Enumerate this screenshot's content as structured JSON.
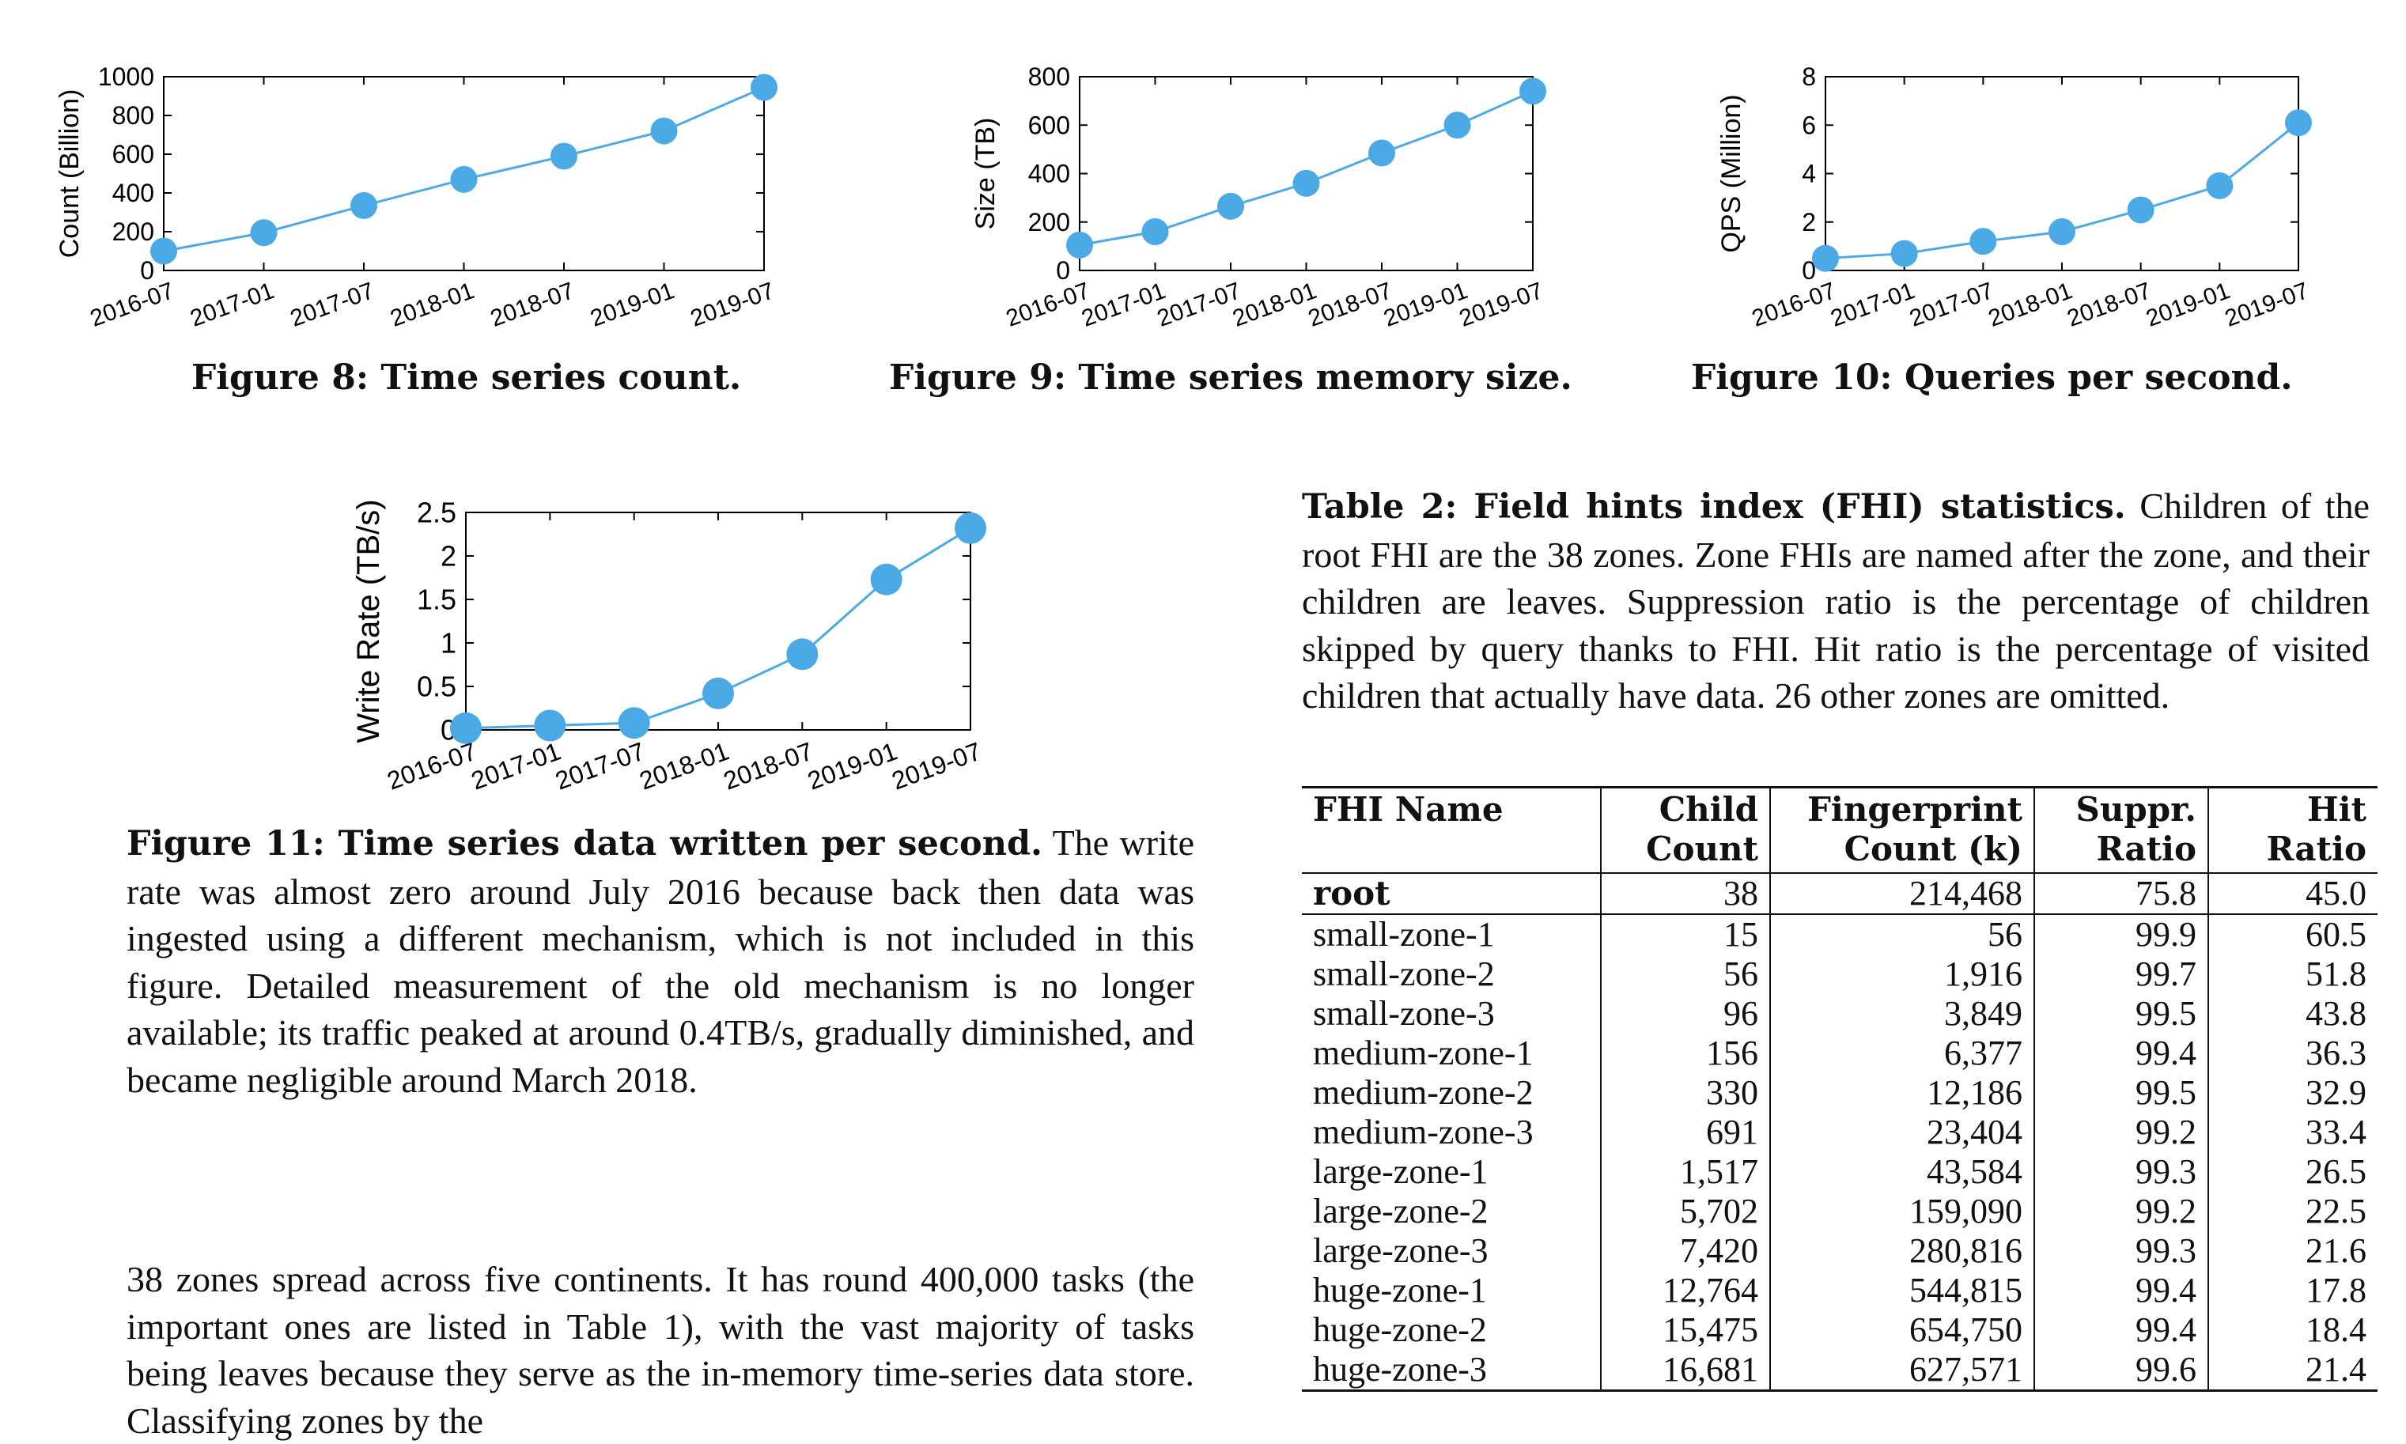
{
  "figures": [
    {
      "chart_data": {
        "type": "line",
        "ylabel": "Count (Billion)",
        "xlabel": "",
        "categories": [
          "2016-07",
          "2017-01",
          "2017-07",
          "2018-01",
          "2018-07",
          "2019-01",
          "2019-07"
        ],
        "values": [
          100,
          195,
          335,
          470,
          590,
          720,
          945
        ],
        "ylim": [
          0,
          1000
        ],
        "yticks": [
          "0",
          "200",
          "400",
          "600",
          "800",
          "1000"
        ],
        "color": "#4ba9e6"
      },
      "caption": "Figure 8:  Time series count."
    },
    {
      "chart_data": {
        "type": "line",
        "ylabel": "Size (TB)",
        "xlabel": "",
        "categories": [
          "2016-07",
          "2017-01",
          "2017-07",
          "2018-01",
          "2018-07",
          "2019-01",
          "2019-07"
        ],
        "values": [
          105,
          160,
          265,
          360,
          485,
          600,
          740
        ],
        "ylim": [
          0,
          800
        ],
        "yticks": [
          "0",
          "200",
          "400",
          "600",
          "800"
        ],
        "color": "#4ba9e6"
      },
      "caption": "Figure 9:  Time series memory size."
    },
    {
      "chart_data": {
        "type": "line",
        "ylabel": "QPS (Million)",
        "xlabel": "",
        "categories": [
          "2016-07",
          "2017-01",
          "2017-07",
          "2018-01",
          "2018-07",
          "2019-01",
          "2019-07"
        ],
        "values": [
          0.5,
          0.7,
          1.2,
          1.6,
          2.5,
          3.5,
          6.1
        ],
        "ylim": [
          0,
          8
        ],
        "yticks": [
          "0",
          "2",
          "4",
          "6",
          "8"
        ],
        "color": "#4ba9e6"
      },
      "caption": "Figure 10:  Queries per second."
    },
    {
      "chart_data": {
        "type": "line",
        "ylabel": "Write Rate (TB/s)",
        "xlabel": "",
        "categories": [
          "2016-07",
          "2017-01",
          "2017-07",
          "2018-01",
          "2018-07",
          "2019-01",
          "2019-07"
        ],
        "values": [
          0.02,
          0.05,
          0.08,
          0.42,
          0.87,
          1.73,
          2.32
        ],
        "ylim": [
          0,
          2.5
        ],
        "yticks": [
          "0",
          "0.5",
          "1",
          "1.5",
          "2",
          "2.5"
        ],
        "color": "#4ba9e6"
      },
      "caption_lead": "Figure 11:  Time series data written per second.",
      "caption_text": " The write rate was almost zero around July 2016 because back then data was ingested using a different mechanism, which is not included in this figure. Detailed measurement of the old mechanism is no longer available; its traffic peaked at around 0.4TB/s, gradually diminished, and became negligible around March 2018."
    }
  ],
  "table2": {
    "caption_lead": "Table 2:  Field hints index (FHI) statistics.",
    "caption_text": " Children of the root FHI are the 38 zones. Zone FHIs are named after the zone, and their children are leaves. Suppression ratio is the percentage of children skipped by query thanks to FHI. Hit ratio is the percentage of visited children that actually have data. 26 other zones are omitted.",
    "headers": [
      [
        "FHI Name",
        ""
      ],
      [
        "Child",
        "Count"
      ],
      [
        "Fingerprint",
        "Count (k)"
      ],
      [
        "Suppr.",
        "Ratio"
      ],
      [
        "Hit",
        "Ratio"
      ]
    ],
    "root": [
      "root",
      "38",
      "214,468",
      "75.8",
      "45.0"
    ],
    "rows": [
      [
        "small-zone-1",
        "15",
        "56",
        "99.9",
        "60.5"
      ],
      [
        "small-zone-2",
        "56",
        "1,916",
        "99.7",
        "51.8"
      ],
      [
        "small-zone-3",
        "96",
        "3,849",
        "99.5",
        "43.8"
      ],
      [
        "medium-zone-1",
        "156",
        "6,377",
        "99.4",
        "36.3"
      ],
      [
        "medium-zone-2",
        "330",
        "12,186",
        "99.5",
        "32.9"
      ],
      [
        "medium-zone-3",
        "691",
        "23,404",
        "99.2",
        "33.4"
      ],
      [
        "large-zone-1",
        "1,517",
        "43,584",
        "99.3",
        "26.5"
      ],
      [
        "large-zone-2",
        "5,702",
        "159,090",
        "99.2",
        "22.5"
      ],
      [
        "large-zone-3",
        "7,420",
        "280,816",
        "99.3",
        "21.6"
      ],
      [
        "huge-zone-1",
        "12,764",
        "544,815",
        "99.4",
        "17.8"
      ],
      [
        "huge-zone-2",
        "15,475",
        "654,750",
        "99.4",
        "18.4"
      ],
      [
        "huge-zone-3",
        "16,681",
        "627,571",
        "99.6",
        "21.4"
      ]
    ]
  },
  "body_text": "38 zones spread across five continents. It has round 400,000 tasks (the important ones are listed in Table 1), with the vast majority of tasks being leaves because they serve as the in-memory time-series data store. Classifying zones by the"
}
